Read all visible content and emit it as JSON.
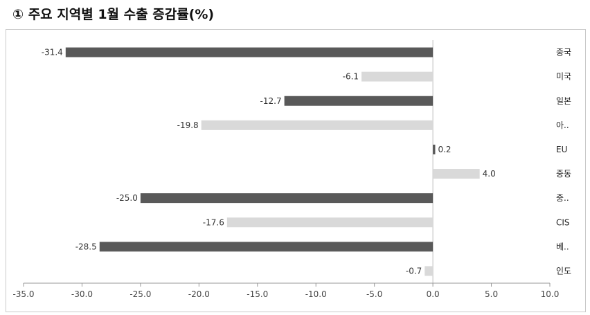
{
  "title": "① 주요 지역별 1월 수출 증감률(%)",
  "chart_data": {
    "type": "bar",
    "orientation": "horizontal",
    "categories": [
      "중국",
      "미국",
      "일본",
      "아..",
      "EU",
      "중동",
      "중..",
      "CIS",
      "베..",
      "인도"
    ],
    "values": [
      -31.4,
      -6.1,
      -12.7,
      -19.8,
      0.2,
      4.0,
      -25.0,
      -17.6,
      -28.5,
      -0.7
    ],
    "value_labels": [
      "-31.4",
      "-6.1",
      "-12.7",
      "-19.8",
      "0.2",
      "4.0",
      "-25.0",
      "-17.6",
      "-28.5",
      "-0.7"
    ],
    "xlim": [
      -35.0,
      10.0
    ],
    "x_ticks": [
      -35,
      -30,
      -25,
      -20,
      -15,
      -10,
      -5,
      0,
      5,
      10
    ],
    "x_tick_labels": [
      "-35.0",
      "-30.0",
      "-25.0",
      "-20.0",
      "-15.0",
      "-10.0",
      "-5.0",
      "0.0",
      "5.0",
      "10.0"
    ],
    "grid": false,
    "bar_colors": [
      "#595959",
      "#d9d9d9"
    ]
  }
}
